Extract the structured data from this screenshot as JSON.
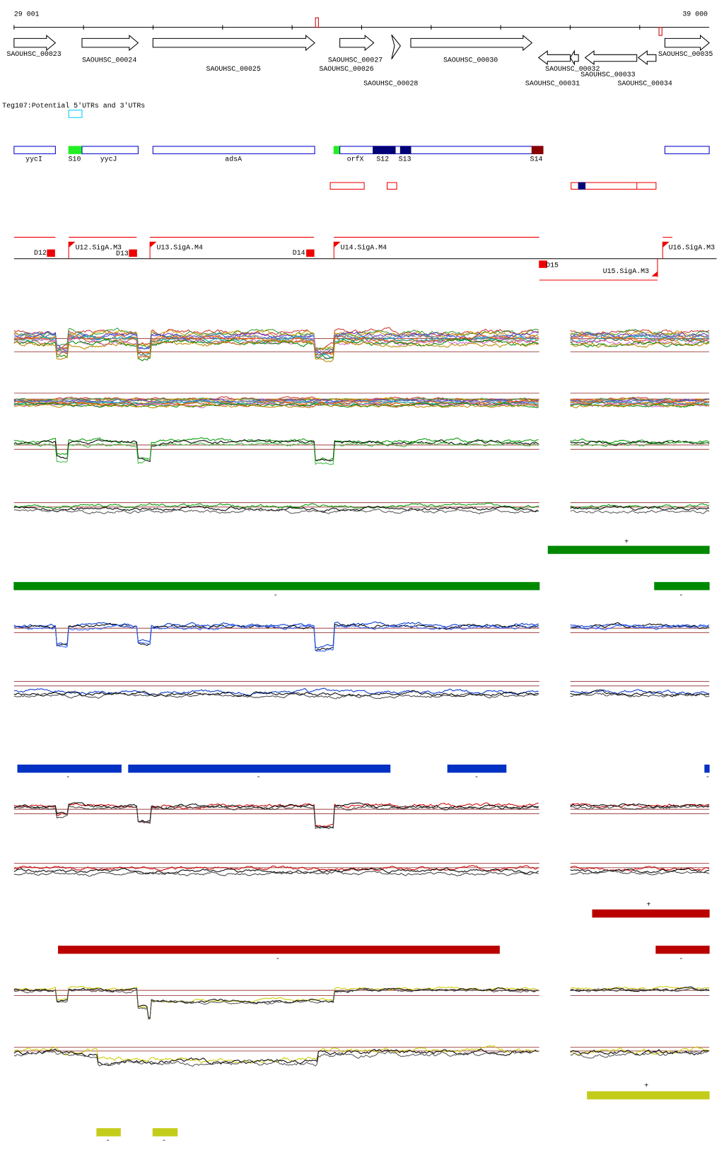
{
  "ruler": {
    "start": "29 001",
    "end": "39 000"
  },
  "genes": [
    "SAOUHSC_00023",
    "SAOUHSC_00024",
    "SAOUHSC_00025",
    "SAOUHSC_00027",
    "SAOUHSC_00026",
    "SAOUHSC_00028",
    "SAOUHSC_00030",
    "SAOUHSC_00031",
    "SAOUHSC_00032",
    "SAOUHSC_00033",
    "SAOUHSC_00034",
    "SAOUHSC_00035"
  ],
  "track_title": "Teg107:Potential 5'UTRs and 3'UTRs",
  "features": [
    "yycI",
    "S10",
    "yycJ",
    "adsA",
    "orfX",
    "S12",
    "S13",
    "S14"
  ],
  "promoters": [
    "D12",
    "U12.SigA.M3",
    "D13",
    "U13.SigA.M4",
    "D14",
    "U14.SigA.M4",
    "D15",
    "U15.SigA.M3",
    "U16.SigA.M3"
  ],
  "strand_labels": [
    "+",
    "-",
    "-",
    "-",
    "-",
    "-",
    "+",
    "-",
    "-",
    "-",
    "+",
    "-",
    "-"
  ]
}
